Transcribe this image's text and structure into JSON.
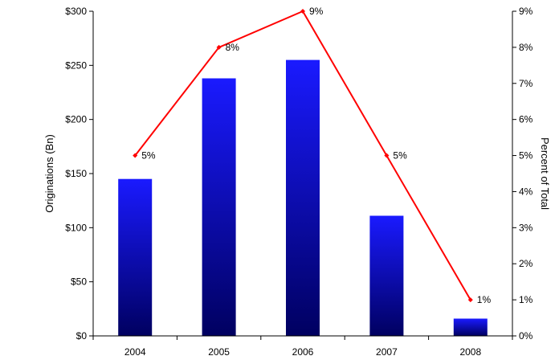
{
  "chart_data": {
    "type": "bar",
    "categories": [
      "2004",
      "2005",
      "2006",
      "2007",
      "2008"
    ],
    "series": [
      {
        "type": "bar",
        "axis": "left",
        "values": [
          145,
          238,
          255,
          111,
          16
        ],
        "color": "#1010ff"
      },
      {
        "type": "line",
        "axis": "right",
        "values": [
          5,
          8,
          9,
          5,
          1
        ],
        "value_unit": "percent",
        "color": "#ff0000",
        "labels": [
          "5%",
          "8%",
          "9%",
          "5%",
          "1%"
        ]
      }
    ],
    "ylabel": "Originations (Bn)",
    "y2label": "Percent of Total",
    "ylim": [
      0,
      300
    ],
    "y2lim": [
      0,
      9
    ],
    "yticks": [
      "$0",
      "$50",
      "$100",
      "$150",
      "$200",
      "$250",
      "$300"
    ],
    "y2ticks": [
      "0%",
      "1%",
      "2%",
      "3%",
      "4%",
      "5%",
      "6%",
      "7%",
      "8%",
      "9%"
    ],
    "grid": false,
    "legend": "none",
    "colors": {
      "bar_top": "#1a1aff",
      "bar_bottom": "#000060",
      "line": "#ff0000"
    }
  }
}
